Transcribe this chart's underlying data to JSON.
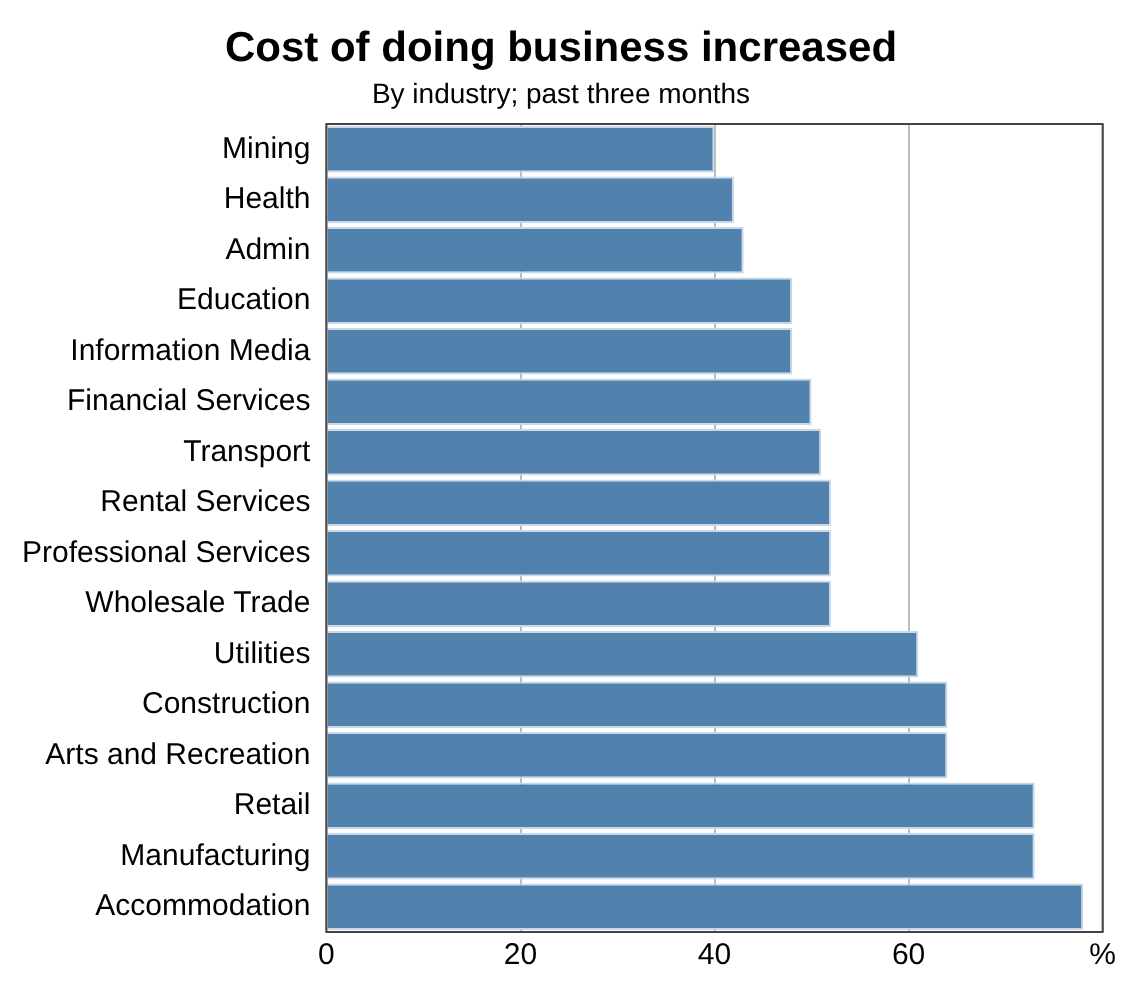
{
  "chart_data": {
    "type": "bar",
    "orientation": "horizontal",
    "title": "Cost of doing business increased",
    "subtitle": "By industry; past three months",
    "categories": [
      "Mining",
      "Health",
      "Admin",
      "Education",
      "Information Media",
      "Financial Services",
      "Transport",
      "Rental Services",
      "Professional Services",
      "Wholesale Trade",
      "Utilities",
      "Construction",
      "Arts and Recreation",
      "Retail",
      "Manufacturing",
      "Accommodation"
    ],
    "values": [
      40,
      42,
      43,
      48,
      48,
      50,
      51,
      52,
      52,
      52,
      61,
      64,
      64,
      73,
      73,
      78
    ],
    "color": "#5182ae",
    "xlim": [
      0,
      80
    ],
    "xticks": [
      0,
      20,
      40,
      60,
      {
        "value": 80,
        "label": "%"
      }
    ],
    "grid": "x",
    "legend": false
  }
}
